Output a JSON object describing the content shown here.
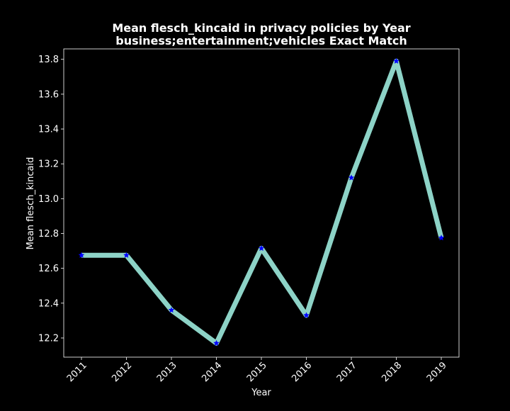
{
  "chart_data": {
    "type": "line",
    "title_line1": "Mean flesch_kincaid in privacy policies by Year",
    "title_line2": "business;entertainment;vehicles Exact Match",
    "xlabel": "Year",
    "ylabel": "Mean flesch_kincaid",
    "categories": [
      "2011",
      "2012",
      "2013",
      "2014",
      "2015",
      "2016",
      "2017",
      "2018",
      "2019"
    ],
    "series": [
      {
        "values": [
          12.675,
          12.675,
          12.36,
          12.17,
          12.715,
          12.33,
          13.12,
          13.79,
          12.775
        ]
      }
    ],
    "ylim": [
      12.09,
      13.86
    ],
    "yticks": [
      12.2,
      12.4,
      12.6,
      12.8,
      13.0,
      13.2,
      13.4,
      13.6,
      13.8
    ],
    "ytick_labels": [
      "12.2",
      "12.4",
      "12.6",
      "12.8",
      "13.0",
      "13.2",
      "13.4",
      "13.6",
      "13.8"
    ],
    "grid": false,
    "line_color": "#8dd3c7",
    "marker_color": "#0000ff",
    "marker": "star",
    "background": "#000000",
    "foreground": "#ffffff"
  }
}
